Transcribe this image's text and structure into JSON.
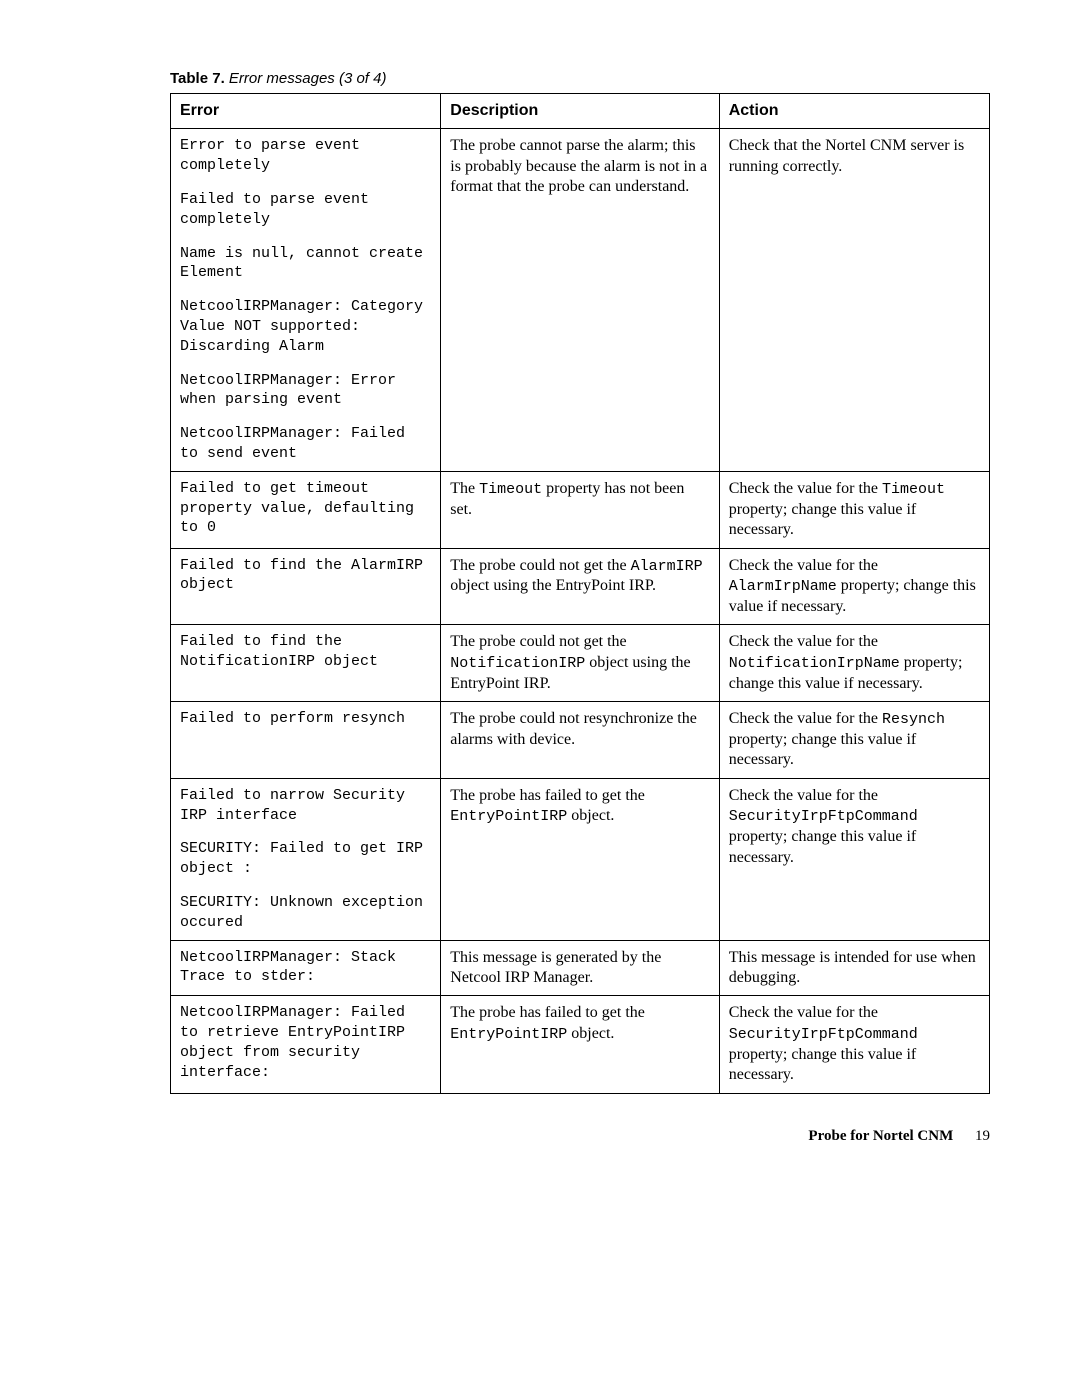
{
  "caption": {
    "label": "Table 7.",
    "title": "Error messages (3 of 4)"
  },
  "headers": {
    "error": "Error",
    "description": "Description",
    "action": "Action"
  },
  "rows": [
    {
      "errors": [
        "Error to parse event completely",
        "Failed to parse event completely",
        "Name is null, cannot create Element",
        "NetcoolIRPManager: Category Value NOT supported: Discarding Alarm",
        "NetcoolIRPManager: Error when parsing event",
        "NetcoolIRPManager: Failed to send event"
      ],
      "desc": [
        {
          "t": "The probe cannot parse the alarm; this is probably because the alarm is not in a format that the probe can understand."
        }
      ],
      "action": [
        {
          "t": "Check that the Nortel CNM server is running correctly."
        }
      ]
    },
    {
      "errors": [
        "Failed to get timeout property value, defaulting to 0"
      ],
      "desc": [
        {
          "t": "The "
        },
        {
          "t": "Timeout",
          "m": true
        },
        {
          "t": " property has not been set."
        }
      ],
      "action": [
        {
          "t": "Check the value for the "
        },
        {
          "t": "Timeout",
          "m": true
        },
        {
          "t": " property; change this value if necessary."
        }
      ]
    },
    {
      "errors": [
        "Failed to find the AlarmIRP object"
      ],
      "desc": [
        {
          "t": "The probe could not get the "
        },
        {
          "t": "AlarmIRP",
          "m": true
        },
        {
          "t": " object using the EntryPoint IRP."
        }
      ],
      "action": [
        {
          "t": "Check the value for the "
        },
        {
          "t": "AlarmIrpName",
          "m": true
        },
        {
          "t": " property; change this value if necessary."
        }
      ]
    },
    {
      "errors": [
        "Failed to find the NotificationIRP object"
      ],
      "desc": [
        {
          "t": "The probe could not get the "
        },
        {
          "t": "NotificationIRP",
          "m": true
        },
        {
          "t": " object using the EntryPoint IRP."
        }
      ],
      "action": [
        {
          "t": "Check the value for the "
        },
        {
          "t": "NotificationIrpName",
          "m": true
        },
        {
          "t": " property; change this value if necessary."
        }
      ]
    },
    {
      "errors": [
        "Failed to perform resynch"
      ],
      "desc": [
        {
          "t": "The probe could not resynchronize the alarms with device."
        }
      ],
      "action": [
        {
          "t": "Check the value for the "
        },
        {
          "t": "Resynch",
          "m": true
        },
        {
          "t": " property; change this value if necessary."
        }
      ]
    },
    {
      "errors": [
        "Failed to narrow Security IRP interface",
        "SECURITY: Failed to get IRP object :",
        "SECURITY: Unknown exception occured"
      ],
      "desc": [
        {
          "t": "The probe has failed to get the "
        },
        {
          "t": "EntryPointIRP",
          "m": true
        },
        {
          "t": " object."
        }
      ],
      "action": [
        {
          "t": "Check the value for the "
        },
        {
          "t": "SecurityIrpFtpCommand",
          "m": true
        },
        {
          "t": " property; change this value if necessary."
        }
      ]
    },
    {
      "errors": [
        "NetcoolIRPManager: Stack Trace to stder:"
      ],
      "desc": [
        {
          "t": "This message is generated by the Netcool IRP Manager."
        }
      ],
      "action": [
        {
          "t": "This message is intended for use when debugging."
        }
      ]
    },
    {
      "errors": [
        "NetcoolIRPManager: Failed to retrieve EntryPointIRP object from security interface:"
      ],
      "desc": [
        {
          "t": "The probe has failed to get the "
        },
        {
          "t": "EntryPointIRP",
          "m": true
        },
        {
          "t": " object."
        }
      ],
      "action": [
        {
          "t": "Check the value for the "
        },
        {
          "t": "SecurityIrpFtpCommand",
          "m": true
        },
        {
          "t": " property; change this value if necessary."
        }
      ]
    }
  ],
  "footer": {
    "title": "Probe for Nortel CNM",
    "page": "19"
  }
}
